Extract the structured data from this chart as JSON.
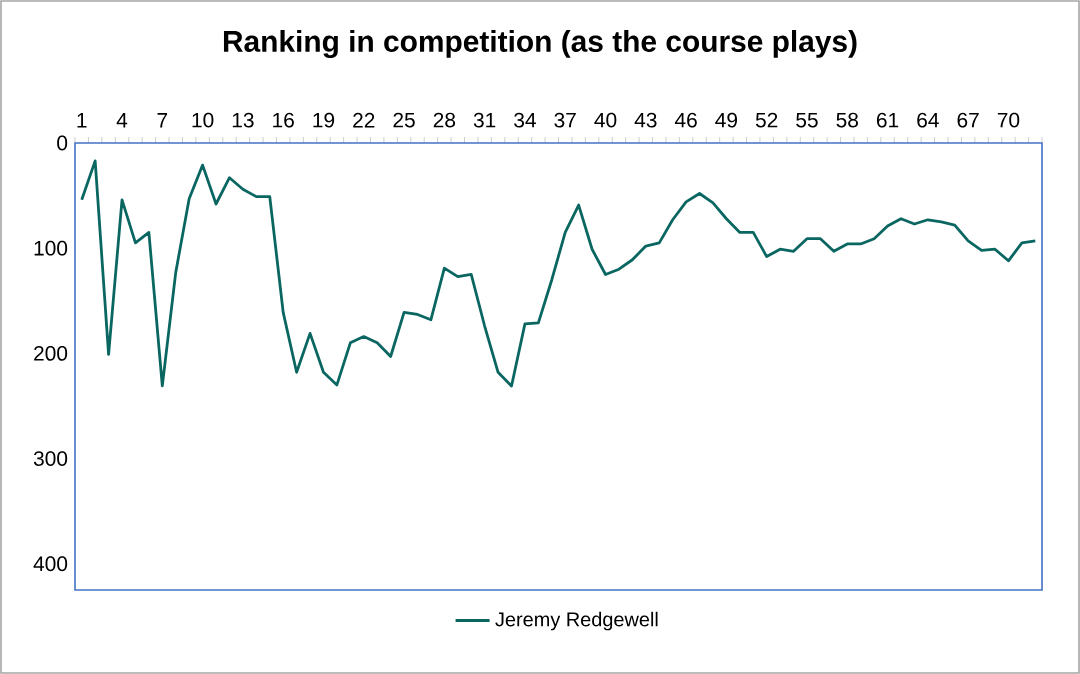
{
  "chart_data": {
    "type": "line",
    "title": "Ranking in competition (as the course plays)",
    "categories": [
      "1",
      null,
      null,
      "4",
      null,
      null,
      "7",
      null,
      null,
      "10",
      null,
      null,
      "13",
      null,
      null,
      "16",
      null,
      null,
      "19",
      null,
      null,
      "22",
      null,
      null,
      "25",
      null,
      null,
      "28",
      null,
      null,
      "31",
      null,
      null,
      "34",
      null,
      null,
      "37",
      null,
      null,
      "40",
      null,
      null,
      "43",
      null,
      null,
      "46",
      null,
      null,
      "49",
      null,
      null,
      "52",
      null,
      null,
      "55",
      null,
      null,
      "58",
      null,
      null,
      "61",
      null,
      null,
      "64",
      null,
      null,
      "67",
      null,
      null,
      "70",
      null,
      null
    ],
    "series": [
      {
        "name": "Jeremy Redgewell",
        "color": "#0a6660",
        "values": [
          54,
          17,
          201,
          54,
          95,
          85,
          231,
          123,
          53,
          21,
          58,
          33,
          44,
          51,
          51,
          161,
          218,
          181,
          218,
          230,
          190,
          184,
          190,
          203,
          161,
          163,
          168,
          119,
          127,
          125,
          174,
          218,
          231,
          172,
          171,
          130,
          85,
          59,
          101,
          125,
          120,
          111,
          98,
          95,
          73,
          56,
          48,
          57,
          72,
          85,
          85,
          108,
          101,
          103,
          91,
          91,
          103,
          96,
          96,
          91,
          79,
          72,
          77,
          73,
          75,
          78,
          93,
          102,
          101,
          112,
          95,
          93
        ]
      }
    ],
    "ylim": [
      425,
      0
    ],
    "yticks": [
      0,
      100,
      200,
      300,
      400
    ],
    "legend": "bottom"
  }
}
